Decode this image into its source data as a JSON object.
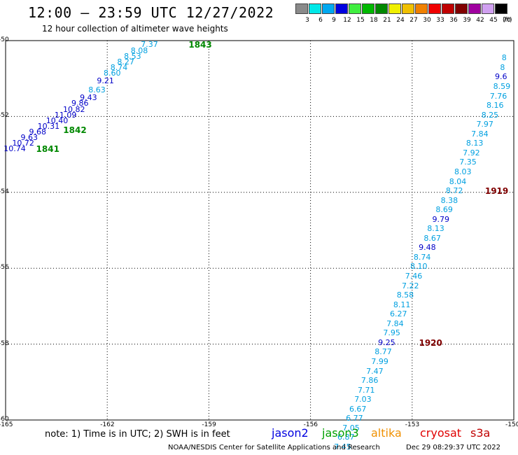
{
  "header": {
    "title": "12:00 – 23:59 UTC 12/27/2022",
    "subtitle": "12 hour collection of altimeter wave heights"
  },
  "colorbar": {
    "unit": "(ft)",
    "bins": [
      {
        "label": "3",
        "color": "#8a8a8a"
      },
      {
        "label": "6",
        "color": "#00e8e8"
      },
      {
        "label": "9",
        "color": "#00a8f0"
      },
      {
        "label": "12",
        "color": "#0000e0"
      },
      {
        "label": "15",
        "color": "#40ee40"
      },
      {
        "label": "18",
        "color": "#00b800"
      },
      {
        "label": "21",
        "color": "#008800"
      },
      {
        "label": "24",
        "color": "#f0f000"
      },
      {
        "label": "27",
        "color": "#f0c000"
      },
      {
        "label": "30",
        "color": "#f08000"
      },
      {
        "label": "33",
        "color": "#f00000"
      },
      {
        "label": "36",
        "color": "#c00000"
      },
      {
        "label": "39",
        "color": "#800000"
      },
      {
        "label": "42",
        "color": "#a000a0"
      },
      {
        "label": "45",
        "color": "#d0a0f0"
      },
      {
        "label": "70",
        "color": "#000000"
      }
    ]
  },
  "map": {
    "lat_ticks": [
      -50,
      -52,
      -54,
      -56,
      -58,
      -60
    ],
    "lon_ticks": [
      -165,
      -162,
      -159,
      -156,
      -153,
      -150
    ]
  },
  "tracks": [
    {
      "id": "west",
      "points": [
        {
          "lon": -164.85,
          "lat": -52.85,
          "v": "10.74",
          "c": "#0000c8"
        },
        {
          "lon": -164.6,
          "lat": -52.7,
          "v": "10.72",
          "c": "#0000c8"
        },
        {
          "lon": -164.35,
          "lat": -52.55,
          "v": "9.63",
          "c": "#0000c8"
        },
        {
          "lon": -164.1,
          "lat": -52.4,
          "v": "9.68",
          "c": "#0000c8"
        },
        {
          "lon": -163.85,
          "lat": -52.25,
          "v": "10.31",
          "c": "#0000c8"
        },
        {
          "lon": -163.6,
          "lat": -52.1,
          "v": "10.40",
          "c": "#0000c8"
        },
        {
          "lon": -163.35,
          "lat": -51.95,
          "v": "11.09",
          "c": "#0000c8"
        },
        {
          "lon": -163.1,
          "lat": -51.8,
          "v": "10.82",
          "c": "#0000c8"
        },
        {
          "lon": -162.85,
          "lat": -51.65,
          "v": "9.86",
          "c": "#0000c8"
        },
        {
          "lon": -162.6,
          "lat": -51.5,
          "v": "9.43",
          "c": "#0000c8"
        },
        {
          "lon": -162.35,
          "lat": -51.3,
          "v": "8.63",
          "c": "#00a0e0"
        },
        {
          "lon": -162.1,
          "lat": -51.05,
          "v": "9.21",
          "c": "#0000c8"
        },
        {
          "lon": -161.9,
          "lat": -50.85,
          "v": "8.60",
          "c": "#00a0e0"
        },
        {
          "lon": -161.7,
          "lat": -50.7,
          "v": "8.74",
          "c": "#00a0e0"
        },
        {
          "lon": -161.5,
          "lat": -50.55,
          "v": "8.27",
          "c": "#00a0e0"
        },
        {
          "lon": -161.3,
          "lat": -50.4,
          "v": "8.53",
          "c": "#00a0e0"
        },
        {
          "lon": -161.1,
          "lat": -50.25,
          "v": "8.08",
          "c": "#00a0e0"
        },
        {
          "lon": -160.8,
          "lat": -50.1,
          "v": "7.37",
          "c": "#00a0e0"
        }
      ]
    },
    {
      "id": "east",
      "points": [
        {
          "lon": -150.15,
          "lat": -50.45,
          "v": "8",
          "c": "#00a0e0"
        },
        {
          "lon": -150.2,
          "lat": -50.7,
          "v": "8",
          "c": "#00a0e0"
        },
        {
          "lon": -150.35,
          "lat": -50.95,
          "v": "9.6",
          "c": "#0000c8"
        },
        {
          "lon": -150.4,
          "lat": -51.2,
          "v": "8.59",
          "c": "#00a0e0"
        },
        {
          "lon": -150.5,
          "lat": -51.45,
          "v": "7.76",
          "c": "#00a0e0"
        },
        {
          "lon": -150.6,
          "lat": -51.7,
          "v": "8.16",
          "c": "#00a0e0"
        },
        {
          "lon": -150.75,
          "lat": -51.95,
          "v": "8.25",
          "c": "#00a0e0"
        },
        {
          "lon": -150.9,
          "lat": -52.2,
          "v": "7.97",
          "c": "#00a0e0"
        },
        {
          "lon": -151.05,
          "lat": -52.45,
          "v": "7.84",
          "c": "#00a0e0"
        },
        {
          "lon": -151.2,
          "lat": -52.7,
          "v": "8.13",
          "c": "#00a0e0"
        },
        {
          "lon": -151.3,
          "lat": -52.95,
          "v": "7.92",
          "c": "#00a0e0"
        },
        {
          "lon": -151.4,
          "lat": -53.2,
          "v": "7.35",
          "c": "#00a0e0"
        },
        {
          "lon": -151.55,
          "lat": -53.45,
          "v": "8.03",
          "c": "#00a0e0"
        },
        {
          "lon": -151.7,
          "lat": -53.7,
          "v": "8.04",
          "c": "#00a0e0"
        },
        {
          "lon": -151.8,
          "lat": -53.95,
          "v": "8.72",
          "c": "#00a0e0"
        },
        {
          "lon": -151.95,
          "lat": -54.2,
          "v": "8.38",
          "c": "#00a0e0"
        },
        {
          "lon": -152.1,
          "lat": -54.45,
          "v": "8.69",
          "c": "#00a0e0"
        },
        {
          "lon": -152.2,
          "lat": -54.7,
          "v": "9.79",
          "c": "#0000c8"
        },
        {
          "lon": -152.35,
          "lat": -54.95,
          "v": "8.13",
          "c": "#00a0e0"
        },
        {
          "lon": -152.45,
          "lat": -55.2,
          "v": "8.67",
          "c": "#00a0e0"
        },
        {
          "lon": -152.6,
          "lat": -55.45,
          "v": "9.48",
          "c": "#0000c8"
        },
        {
          "lon": -152.75,
          "lat": -55.7,
          "v": "8.74",
          "c": "#00a0e0"
        },
        {
          "lon": -152.85,
          "lat": -55.95,
          "v": "8.10",
          "c": "#00a0e0"
        },
        {
          "lon": -153.0,
          "lat": -56.2,
          "v": "7.46",
          "c": "#00a0e0"
        },
        {
          "lon": -153.1,
          "lat": -56.45,
          "v": "7.22",
          "c": "#00a0e0"
        },
        {
          "lon": -153.25,
          "lat": -56.7,
          "v": "8.58",
          "c": "#00a0e0"
        },
        {
          "lon": -153.35,
          "lat": -56.95,
          "v": "8.11",
          "c": "#00a0e0"
        },
        {
          "lon": -153.45,
          "lat": -57.2,
          "v": "6.27",
          "c": "#00a0e0"
        },
        {
          "lon": -153.55,
          "lat": -57.45,
          "v": "7.84",
          "c": "#00a0e0"
        },
        {
          "lon": -153.65,
          "lat": -57.7,
          "v": "7.95",
          "c": "#00a0e0"
        },
        {
          "lon": -153.8,
          "lat": -57.95,
          "v": "9.25",
          "c": "#0000c8"
        },
        {
          "lon": -153.9,
          "lat": -58.2,
          "v": "8.77",
          "c": "#00a0e0"
        },
        {
          "lon": -154.0,
          "lat": -58.45,
          "v": "7.99",
          "c": "#00a0e0"
        },
        {
          "lon": -154.15,
          "lat": -58.7,
          "v": "7.47",
          "c": "#00a0e0"
        },
        {
          "lon": -154.3,
          "lat": -58.95,
          "v": "7.86",
          "c": "#00a0e0"
        },
        {
          "lon": -154.4,
          "lat": -59.2,
          "v": "7.71",
          "c": "#00a0e0"
        },
        {
          "lon": -154.5,
          "lat": -59.45,
          "v": "7.03",
          "c": "#00a0e0"
        },
        {
          "lon": -154.65,
          "lat": -59.7,
          "v": "6.67",
          "c": "#00a0e0"
        },
        {
          "lon": -154.75,
          "lat": -59.95,
          "v": "6.77",
          "c": "#00a0e0"
        },
        {
          "lon": -154.85,
          "lat": -60.2,
          "v": "7.05",
          "c": "#00a0e0"
        },
        {
          "lon": -155.0,
          "lat": -60.45,
          "v": "6.87",
          "c": "#00a0e0"
        },
        {
          "lon": -155.1,
          "lat": -60.7,
          "v": "7.45",
          "c": "#00a0e0"
        }
      ]
    }
  ],
  "time_tags": [
    {
      "text": "1841",
      "lon": -164.1,
      "lat": -52.85,
      "color": "#008800"
    },
    {
      "text": "1842",
      "lon": -163.3,
      "lat": -52.35,
      "color": "#008800"
    },
    {
      "text": "1843",
      "lon": -159.6,
      "lat": -50.1,
      "color": "#008800"
    },
    {
      "text": "1919",
      "lon": -150.85,
      "lat": -53.95,
      "color": "#800000"
    },
    {
      "text": "1920",
      "lon": -152.8,
      "lat": -57.95,
      "color": "#800000"
    }
  ],
  "footer": {
    "note": "note:  1) Time is in UTC; 2) SWH is in feet",
    "satellites": [
      {
        "name": "jason2",
        "color": "#0000e0"
      },
      {
        "name": "jason3",
        "color": "#00a000"
      },
      {
        "name": "altika",
        "color": "#f09000"
      },
      {
        "name": "cryosat",
        "color": "#e00000"
      },
      {
        "name": "s3a",
        "color": "#c00000"
      }
    ],
    "credit": "NOAA/NESDIS Center for Satellite Applications and Research",
    "timestamp": "Dec 29 08:29:37 UTC 2022"
  }
}
